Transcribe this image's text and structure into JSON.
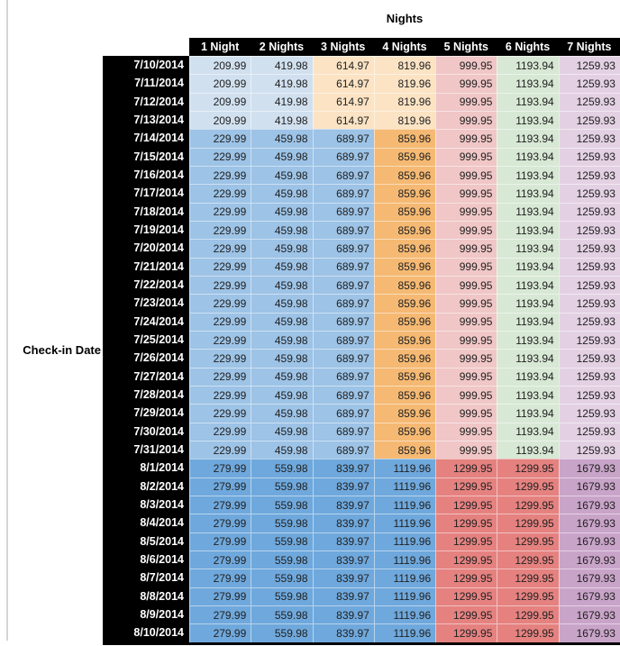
{
  "chart_data": {
    "type": "table",
    "title": "Nights",
    "row_label": "Check-in Date",
    "columns": [
      "1 Night",
      "2 Nights",
      "3 Nights",
      "4 Nights",
      "5 Nights",
      "6 Nights",
      "7 Nights"
    ],
    "rows": [
      {
        "date": "7/10/2014",
        "band": "A",
        "values": [
          "209.99",
          "419.98",
          "614.97",
          "819.96",
          "999.95",
          "1193.94",
          "1259.93"
        ]
      },
      {
        "date": "7/11/2014",
        "band": "A",
        "values": [
          "209.99",
          "419.98",
          "614.97",
          "819.96",
          "999.95",
          "1193.94",
          "1259.93"
        ]
      },
      {
        "date": "7/12/2014",
        "band": "A",
        "values": [
          "209.99",
          "419.98",
          "614.97",
          "819.96",
          "999.95",
          "1193.94",
          "1259.93"
        ]
      },
      {
        "date": "7/13/2014",
        "band": "A",
        "values": [
          "209.99",
          "419.98",
          "614.97",
          "819.96",
          "999.95",
          "1193.94",
          "1259.93"
        ]
      },
      {
        "date": "7/14/2014",
        "band": "B",
        "values": [
          "229.99",
          "459.98",
          "689.97",
          "859.96",
          "999.95",
          "1193.94",
          "1259.93"
        ]
      },
      {
        "date": "7/15/2014",
        "band": "B",
        "values": [
          "229.99",
          "459.98",
          "689.97",
          "859.96",
          "999.95",
          "1193.94",
          "1259.93"
        ]
      },
      {
        "date": "7/16/2014",
        "band": "B",
        "values": [
          "229.99",
          "459.98",
          "689.97",
          "859.96",
          "999.95",
          "1193.94",
          "1259.93"
        ]
      },
      {
        "date": "7/17/2014",
        "band": "B",
        "values": [
          "229.99",
          "459.98",
          "689.97",
          "859.96",
          "999.95",
          "1193.94",
          "1259.93"
        ]
      },
      {
        "date": "7/18/2014",
        "band": "B",
        "values": [
          "229.99",
          "459.98",
          "689.97",
          "859.96",
          "999.95",
          "1193.94",
          "1259.93"
        ]
      },
      {
        "date": "7/19/2014",
        "band": "B",
        "values": [
          "229.99",
          "459.98",
          "689.97",
          "859.96",
          "999.95",
          "1193.94",
          "1259.93"
        ]
      },
      {
        "date": "7/20/2014",
        "band": "B",
        "values": [
          "229.99",
          "459.98",
          "689.97",
          "859.96",
          "999.95",
          "1193.94",
          "1259.93"
        ]
      },
      {
        "date": "7/21/2014",
        "band": "B",
        "values": [
          "229.99",
          "459.98",
          "689.97",
          "859.96",
          "999.95",
          "1193.94",
          "1259.93"
        ]
      },
      {
        "date": "7/22/2014",
        "band": "B",
        "values": [
          "229.99",
          "459.98",
          "689.97",
          "859.96",
          "999.95",
          "1193.94",
          "1259.93"
        ]
      },
      {
        "date": "7/23/2014",
        "band": "B",
        "values": [
          "229.99",
          "459.98",
          "689.97",
          "859.96",
          "999.95",
          "1193.94",
          "1259.93"
        ]
      },
      {
        "date": "7/24/2014",
        "band": "B",
        "values": [
          "229.99",
          "459.98",
          "689.97",
          "859.96",
          "999.95",
          "1193.94",
          "1259.93"
        ]
      },
      {
        "date": "7/25/2014",
        "band": "B",
        "values": [
          "229.99",
          "459.98",
          "689.97",
          "859.96",
          "999.95",
          "1193.94",
          "1259.93"
        ]
      },
      {
        "date": "7/26/2014",
        "band": "B",
        "values": [
          "229.99",
          "459.98",
          "689.97",
          "859.96",
          "999.95",
          "1193.94",
          "1259.93"
        ]
      },
      {
        "date": "7/27/2014",
        "band": "B",
        "values": [
          "229.99",
          "459.98",
          "689.97",
          "859.96",
          "999.95",
          "1193.94",
          "1259.93"
        ]
      },
      {
        "date": "7/28/2014",
        "band": "B",
        "values": [
          "229.99",
          "459.98",
          "689.97",
          "859.96",
          "999.95",
          "1193.94",
          "1259.93"
        ]
      },
      {
        "date": "7/29/2014",
        "band": "B",
        "values": [
          "229.99",
          "459.98",
          "689.97",
          "859.96",
          "999.95",
          "1193.94",
          "1259.93"
        ]
      },
      {
        "date": "7/30/2014",
        "band": "B",
        "values": [
          "229.99",
          "459.98",
          "689.97",
          "859.96",
          "999.95",
          "1193.94",
          "1259.93"
        ]
      },
      {
        "date": "7/31/2014",
        "band": "B",
        "values": [
          "229.99",
          "459.98",
          "689.97",
          "859.96",
          "999.95",
          "1193.94",
          "1259.93"
        ]
      },
      {
        "date": "8/1/2014",
        "band": "C",
        "values": [
          "279.99",
          "559.98",
          "839.97",
          "1119.96",
          "1299.95",
          "1299.95",
          "1679.93"
        ]
      },
      {
        "date": "8/2/2014",
        "band": "C",
        "values": [
          "279.99",
          "559.98",
          "839.97",
          "1119.96",
          "1299.95",
          "1299.95",
          "1679.93"
        ]
      },
      {
        "date": "8/3/2014",
        "band": "C",
        "values": [
          "279.99",
          "559.98",
          "839.97",
          "1119.96",
          "1299.95",
          "1299.95",
          "1679.93"
        ]
      },
      {
        "date": "8/4/2014",
        "band": "C",
        "values": [
          "279.99",
          "559.98",
          "839.97",
          "1119.96",
          "1299.95",
          "1299.95",
          "1679.93"
        ]
      },
      {
        "date": "8/5/2014",
        "band": "C",
        "values": [
          "279.99",
          "559.98",
          "839.97",
          "1119.96",
          "1299.95",
          "1299.95",
          "1679.93"
        ]
      },
      {
        "date": "8/6/2014",
        "band": "C",
        "values": [
          "279.99",
          "559.98",
          "839.97",
          "1119.96",
          "1299.95",
          "1299.95",
          "1679.93"
        ]
      },
      {
        "date": "8/7/2014",
        "band": "C",
        "values": [
          "279.99",
          "559.98",
          "839.97",
          "1119.96",
          "1299.95",
          "1299.95",
          "1679.93"
        ]
      },
      {
        "date": "8/8/2014",
        "band": "C",
        "values": [
          "279.99",
          "559.98",
          "839.97",
          "1119.96",
          "1299.95",
          "1299.95",
          "1679.93"
        ]
      },
      {
        "date": "8/9/2014",
        "band": "C",
        "values": [
          "279.99",
          "559.98",
          "839.97",
          "1119.96",
          "1299.95",
          "1299.95",
          "1679.93"
        ]
      },
      {
        "date": "8/10/2014",
        "band": "C",
        "values": [
          "279.99",
          "559.98",
          "839.97",
          "1119.96",
          "1299.95",
          "1299.95",
          "1679.93"
        ]
      }
    ]
  },
  "styles": {
    "header_bg": "#000000",
    "header_fg": "#ffffff",
    "value_fg": "#212121",
    "edge_line_color": "#d5d5d5",
    "band_colors": {
      "A": [
        "#d1e0ef",
        "#d1e0ef",
        "#fbe3c4",
        "#fbe3c4",
        "#f0c6c6",
        "#d7e8d4",
        "#e3d1e3"
      ],
      "B": [
        "#9dc3e6",
        "#9dc3e6",
        "#9dc3e6",
        "#f5b973",
        "#f0c6c6",
        "#d7e8d4",
        "#e3d1e3"
      ],
      "C": [
        "#6fa8dc",
        "#6fa8dc",
        "#6fa8dc",
        "#6fa8dc",
        "#e58280",
        "#e58280",
        "#c9a4c9"
      ]
    }
  }
}
